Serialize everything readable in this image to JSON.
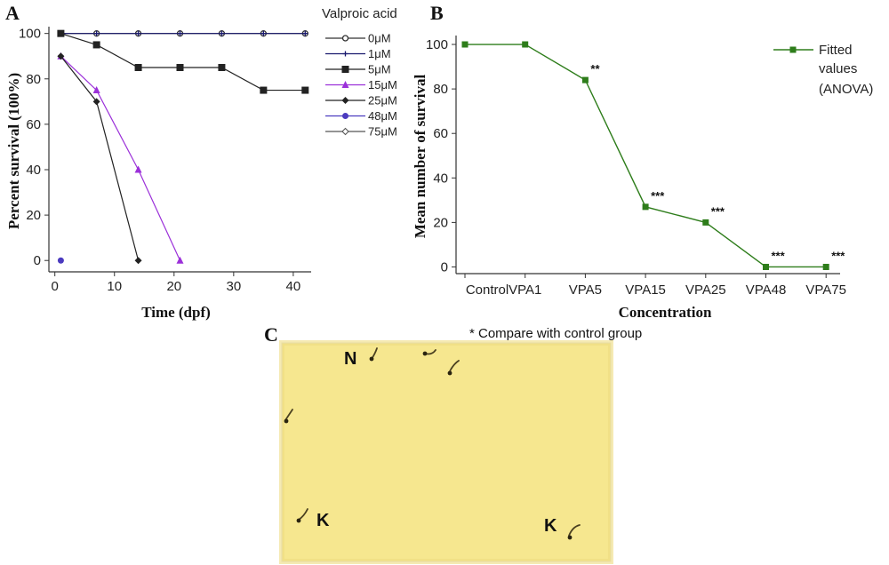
{
  "panels": {
    "a": "A",
    "b": "B",
    "c": "C"
  },
  "chart_data": [
    {
      "type": "line",
      "panel": "A",
      "title": "",
      "xlabel": "Time (dpf)",
      "ylabel": "Percent survival (100%)",
      "xlim": [
        -1,
        43
      ],
      "ylim": [
        -5,
        103
      ],
      "xticks": [
        0,
        10,
        20,
        30,
        40
      ],
      "yticks": [
        0,
        20,
        40,
        60,
        80,
        100
      ],
      "legend_title": "Valproic acid",
      "legend_position": "right",
      "series": [
        {
          "name": "0μM",
          "color": "#333333",
          "marker": "circle-open",
          "x": [
            1,
            7,
            14,
            21,
            28,
            35,
            42
          ],
          "y": [
            100,
            100,
            100,
            100,
            100,
            100,
            100
          ]
        },
        {
          "name": "1μM",
          "color": "#1a1a6e",
          "marker": "plus",
          "x": [
            1,
            7,
            14,
            21,
            28,
            35,
            42
          ],
          "y": [
            100,
            100,
            100,
            100,
            100,
            100,
            100
          ]
        },
        {
          "name": "5μM",
          "color": "#222222",
          "marker": "square",
          "x": [
            1,
            7,
            14,
            21,
            28,
            35,
            42
          ],
          "y": [
            100,
            95,
            85,
            85,
            85,
            75,
            75
          ]
        },
        {
          "name": "15μM",
          "color": "#9b30d9",
          "marker": "triangle",
          "x": [
            1,
            7,
            14,
            21
          ],
          "y": [
            90,
            75,
            40,
            0
          ]
        },
        {
          "name": "25μM",
          "color": "#222222",
          "marker": "diamond",
          "x": [
            1,
            7,
            14
          ],
          "y": [
            90,
            70,
            0
          ]
        },
        {
          "name": "48μM",
          "color": "#4b3bbf",
          "marker": "circle",
          "x": [
            1
          ],
          "y": [
            0
          ]
        },
        {
          "name": "75μM",
          "color": "#555555",
          "marker": "diamond-open",
          "x": [],
          "y": []
        }
      ]
    },
    {
      "type": "line",
      "panel": "B",
      "title": "",
      "xlabel": "Concentration",
      "ylabel": "Mean number of survival",
      "ylim": [
        -3,
        104
      ],
      "yticks": [
        0,
        20,
        40,
        60,
        80,
        100
      ],
      "categories": [
        "Control",
        "VPA1",
        "VPA5",
        "VPA15",
        "VPA25",
        "VPA48",
        "VPA75"
      ],
      "legend_position": "top-right",
      "series": [
        {
          "name": "Fitted values (ANOVA)",
          "color": "#2e7d1b",
          "values": [
            100,
            100,
            84,
            27,
            20,
            0,
            0
          ],
          "significance": [
            "",
            "",
            "**",
            "***",
            "***",
            "***",
            "***"
          ]
        }
      ],
      "legend_lines": [
        "Fitted",
        "values",
        "(ANOVA)"
      ]
    }
  ],
  "microscopy": {
    "note": "* Compare with control group",
    "labels": [
      "N",
      "K",
      "K"
    ],
    "background": "#f6e78f"
  }
}
